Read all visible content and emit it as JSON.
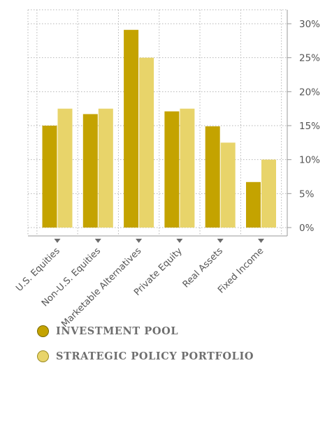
{
  "chart_data": {
    "type": "bar",
    "categories": [
      "U.S. Equities",
      "Non-U.S. Equities",
      "Marketable Alternatives",
      "Private Equity",
      "Real Assets",
      "Fixed Income"
    ],
    "series": [
      {
        "name": "INVESTMENT POOL",
        "color": "#c4a300",
        "values": [
          15.0,
          16.7,
          29.1,
          17.1,
          14.9,
          6.7
        ]
      },
      {
        "name": "STRATEGIC POLICY PORTFOLIO",
        "color": "#e8d46a",
        "values": [
          17.5,
          17.5,
          25.0,
          17.5,
          12.5,
          10.0
        ]
      }
    ],
    "yticks": [
      "0%",
      "5%",
      "10%",
      "15%",
      "20%",
      "25%",
      "30%"
    ],
    "ylim": [
      0,
      30
    ],
    "y_axis_position": "right",
    "grid": true,
    "legend_position": "bottom-left"
  }
}
